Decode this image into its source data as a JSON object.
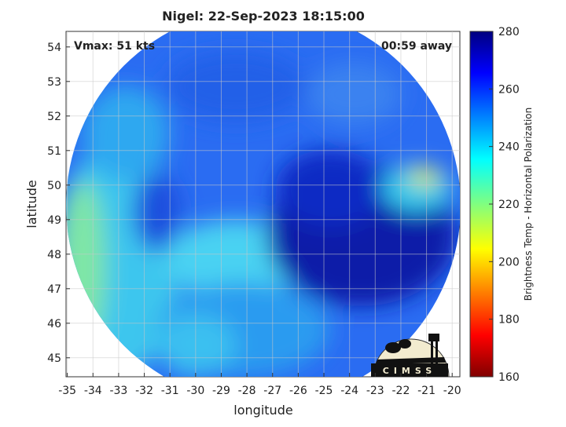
{
  "title": "Nigel: 22-Sep-2023 18:15:00",
  "annotations": {
    "vmax": "Vmax: 51 kts",
    "time_away": "00:59 away"
  },
  "x_axis": {
    "label": "longitude",
    "lim": [
      -35.05,
      -19.7
    ],
    "ticks": [
      -35,
      -34,
      -33,
      -32,
      -31,
      -30,
      -29,
      -28,
      -27,
      -26,
      -25,
      -24,
      -23,
      -22,
      -21,
      -20
    ]
  },
  "y_axis": {
    "label": "latitude",
    "lim": [
      44.45,
      54.45
    ],
    "ticks": [
      45,
      46,
      47,
      48,
      49,
      50,
      51,
      52,
      53,
      54
    ]
  },
  "colorbar": {
    "label": "Brightness Temp - Horizontal Polarization",
    "lim": [
      160,
      280
    ],
    "ticks": [
      160,
      180,
      200,
      220,
      240,
      260,
      280
    ]
  },
  "logo": {
    "text": "CIMSS"
  }
}
